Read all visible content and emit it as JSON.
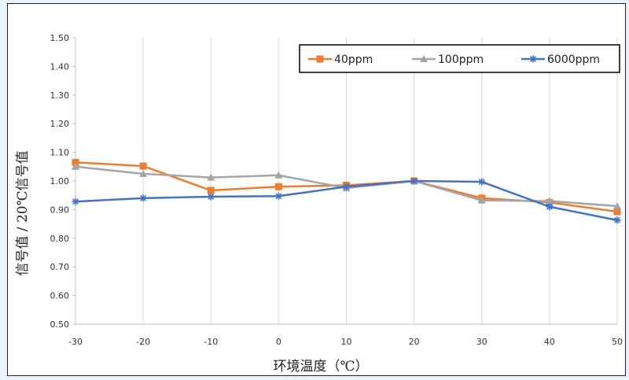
{
  "chart_data": {
    "type": "line",
    "title": "",
    "xlabel": "环境温度（℃）",
    "ylabel": "信号值 / 20℃信号值",
    "x": [
      -30,
      -20,
      -10,
      0,
      10,
      20,
      30,
      40,
      50
    ],
    "x_tick_labels": [
      "-30",
      "-20",
      "-10",
      "0",
      "10",
      "20",
      "30",
      "40",
      "50"
    ],
    "y_tick_labels": [
      "0.50",
      "0.60",
      "0.70",
      "0.80",
      "0.90",
      "1.00",
      "1.10",
      "1.20",
      "1.30",
      "1.40",
      "1.50"
    ],
    "ylim": [
      0.5,
      1.5
    ],
    "xlim": [
      -30,
      50
    ],
    "grid": "vertical",
    "legend_position": "top-right",
    "series": [
      {
        "name": "40ppm",
        "color": "#ed7d31",
        "marker": "square",
        "values": [
          1.065,
          1.052,
          0.967,
          0.98,
          0.985,
          1.0,
          0.94,
          0.925,
          0.893
        ]
      },
      {
        "name": "100ppm",
        "color": "#a5a5a5",
        "marker": "triangle",
        "values": [
          1.05,
          1.025,
          1.012,
          1.02,
          0.975,
          1.0,
          0.932,
          0.93,
          0.912
        ]
      },
      {
        "name": "6000ppm",
        "color": "#4472c4",
        "marker": "star",
        "values": [
          0.928,
          0.94,
          0.945,
          0.947,
          0.98,
          1.0,
          0.997,
          0.91,
          0.863
        ]
      }
    ]
  }
}
